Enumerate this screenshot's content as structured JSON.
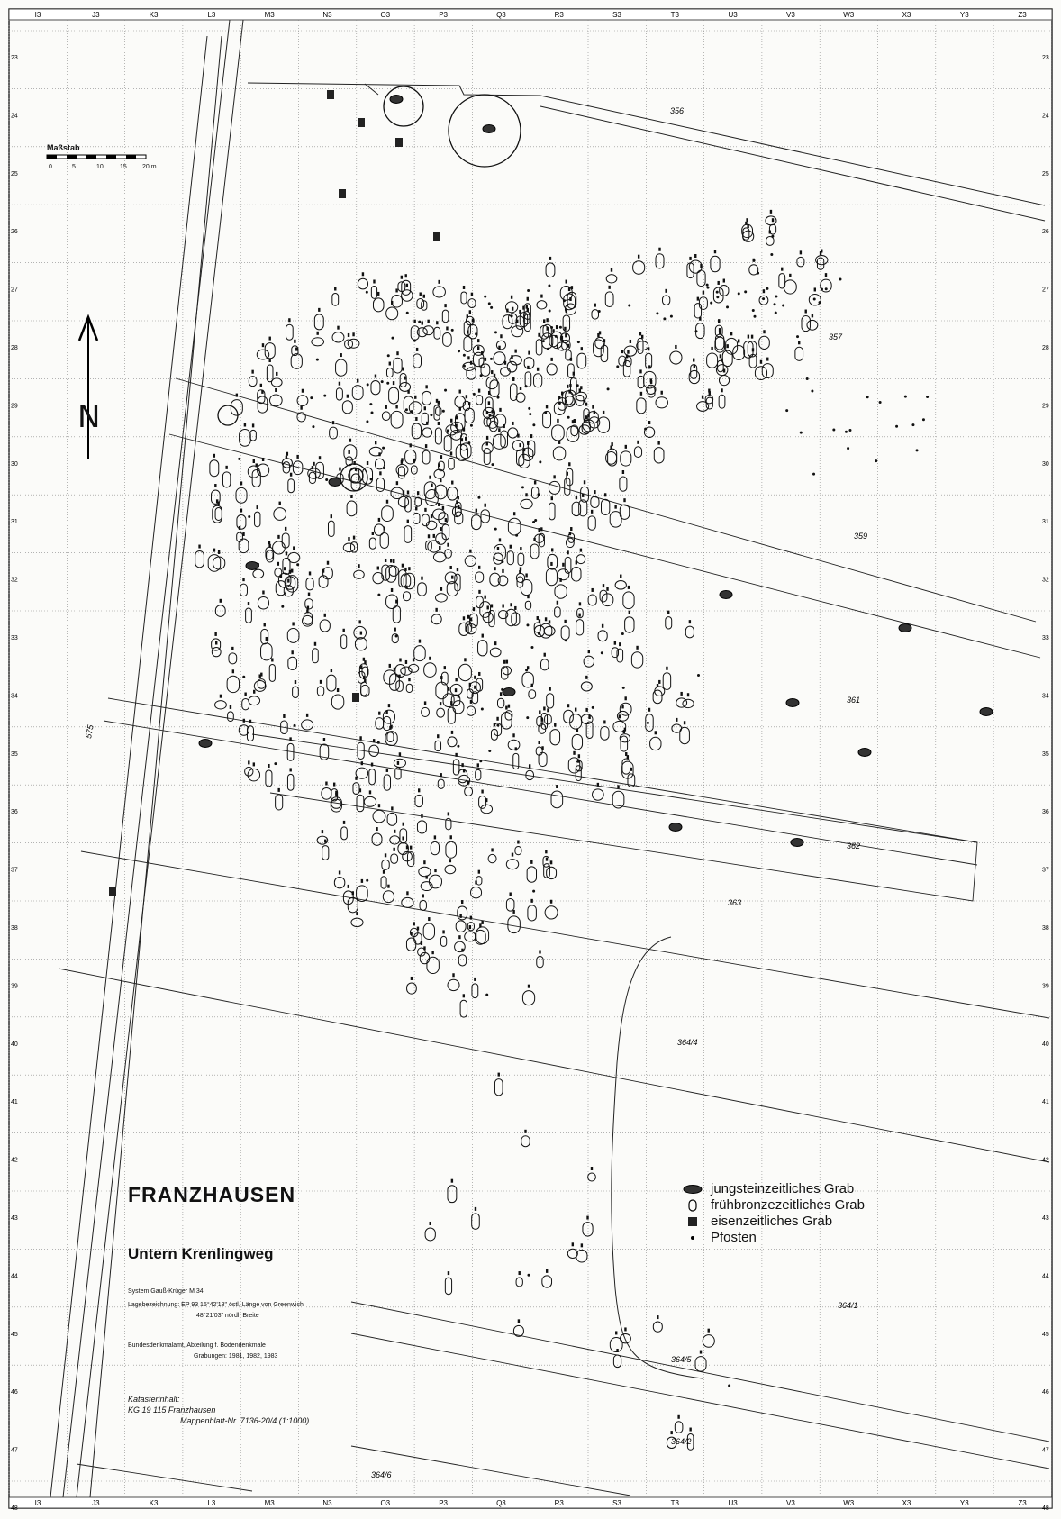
{
  "map": {
    "title": "FRANZHAUSEN",
    "subtitle": "Untern Krenlingweg",
    "north_label": "N",
    "scale": {
      "label": "Maßstab",
      "ticks": [
        "0",
        "5",
        "10",
        "15",
        "20 m"
      ]
    },
    "columns": [
      "I3",
      "J3",
      "K3",
      "L3",
      "M3",
      "N3",
      "O3",
      "P3",
      "Q3",
      "R3",
      "S3",
      "T3",
      "U3",
      "V3",
      "W3",
      "X3",
      "Y3",
      "Z3"
    ],
    "rows": [
      "23",
      "24",
      "25",
      "26",
      "27",
      "28",
      "29",
      "30",
      "31",
      "32",
      "33",
      "34",
      "35",
      "36",
      "37",
      "38",
      "39",
      "40",
      "41",
      "42",
      "43",
      "44",
      "45",
      "46",
      "47",
      "48"
    ],
    "parcels": [
      {
        "id": "p356",
        "label": "356"
      },
      {
        "id": "p357",
        "label": "357"
      },
      {
        "id": "p359",
        "label": "359"
      },
      {
        "id": "p361",
        "label": "361"
      },
      {
        "id": "p362",
        "label": "362"
      },
      {
        "id": "p363",
        "label": "363"
      },
      {
        "id": "p3644",
        "label": "364/4"
      },
      {
        "id": "p3641",
        "label": "364/1"
      },
      {
        "id": "p3645",
        "label": "364/5"
      },
      {
        "id": "p3642",
        "label": "364/2"
      },
      {
        "id": "p3646",
        "label": "364/6"
      },
      {
        "id": "p575",
        "label": "575"
      }
    ],
    "info": {
      "system": "System Gauß-Krüger M 34",
      "location": "Lagebezeichnung: EP 93 15°42'18\" östl. Länge von Greenwich",
      "location2": "48°21'03\" nördl. Breite",
      "office": "Bundesdenkmalamt, Abteilung f. Bodendenkmale",
      "excavation": "Grabungen: 1981, 1982, 1983",
      "cadastre_title": "Katasterinhalt:",
      "cadastre_line1": "KG 19 115 Franzhausen",
      "cadastre_line2": "Mappenblatt-Nr. 7136-20/4 (1:1000)"
    }
  },
  "legend": [
    {
      "icon": "neolithic-grave-icon",
      "label": "jungsteinzeitliches Grab"
    },
    {
      "icon": "bronze-age-grave-icon",
      "label": "frühbronzezeitliches Grab"
    },
    {
      "icon": "iron-age-grave-icon",
      "label": "eisenzeitliches Grab"
    },
    {
      "icon": "post-hole-icon",
      "label": "Pfosten"
    }
  ]
}
